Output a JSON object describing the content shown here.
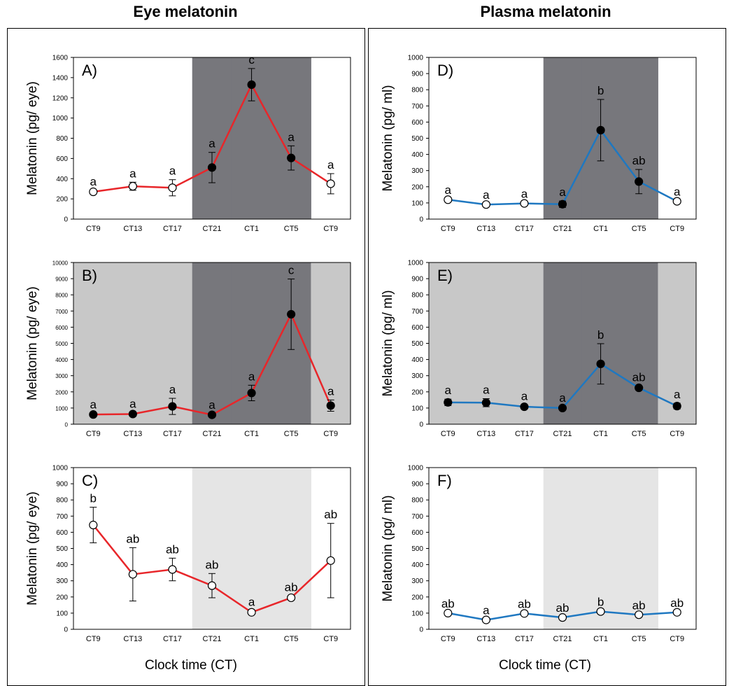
{
  "titles": {
    "left": "Eye melatonin",
    "right": "Plasma melatonin"
  },
  "xlabel": "Clock time (CT)",
  "colors": {
    "eye_line": "#e8262a",
    "plasma_line": "#1f78c1",
    "night_dark": "#77777c",
    "day_light": "#c8c8c8",
    "very_light": "#e5e5e5"
  },
  "chart_data": [
    {
      "type": "line",
      "panel": "A)",
      "ylabel": "Melatonin (pg/ eye)",
      "ylim": [
        0,
        1600
      ],
      "yticks": [
        0,
        200,
        400,
        600,
        800,
        1000,
        1200,
        1400,
        1600
      ],
      "categories": [
        "CT9",
        "CT13",
        "CT17",
        "CT21",
        "CT1",
        "CT5",
        "CT9"
      ],
      "values": [
        270,
        325,
        310,
        510,
        1330,
        605,
        350
      ],
      "errors": [
        15,
        40,
        80,
        150,
        160,
        120,
        100
      ],
      "filled": [
        false,
        false,
        false,
        true,
        true,
        true,
        false
      ],
      "letters": [
        "a",
        "a",
        "a",
        "a",
        "c",
        "a",
        "a"
      ],
      "background": [
        "white",
        "white",
        "white",
        "dark",
        "dark",
        "dark",
        "white"
      ],
      "line": "eye"
    },
    {
      "type": "line",
      "panel": "B)",
      "ylabel": "Melatonin (pg/ eye)",
      "ylim": [
        0,
        10000
      ],
      "yticks": [
        0,
        1000,
        2000,
        3000,
        4000,
        5000,
        6000,
        7000,
        8000,
        9000,
        10000
      ],
      "categories": [
        "CT9",
        "CT13",
        "CT17",
        "CT21",
        "CT1",
        "CT5",
        "CT9"
      ],
      "values": [
        600,
        630,
        1100,
        580,
        1930,
        6800,
        1150
      ],
      "errors": [
        80,
        80,
        500,
        80,
        480,
        2180,
        350
      ],
      "filled": [
        true,
        true,
        true,
        true,
        true,
        true,
        true
      ],
      "letters": [
        "a",
        "a",
        "a",
        "a",
        "a",
        "c",
        "a"
      ],
      "background": [
        "light",
        "light",
        "light",
        "dark",
        "dark",
        "dark",
        "light"
      ],
      "line": "eye"
    },
    {
      "type": "line",
      "panel": "C)",
      "ylabel": "Melatonin (pg/ eye)",
      "ylim": [
        0,
        1000
      ],
      "yticks": [
        0,
        100,
        200,
        300,
        400,
        500,
        600,
        700,
        800,
        900,
        1000
      ],
      "categories": [
        "CT9",
        "CT13",
        "CT17",
        "CT21",
        "CT1",
        "CT5",
        "CT9"
      ],
      "values": [
        645,
        340,
        370,
        270,
        105,
        195,
        425
      ],
      "errors": [
        110,
        165,
        70,
        75,
        10,
        10,
        230
      ],
      "filled": [
        false,
        false,
        false,
        false,
        false,
        false,
        false
      ],
      "letters": [
        "b",
        "ab",
        "ab",
        "ab",
        "a",
        "ab",
        "ab"
      ],
      "background": [
        "white",
        "white",
        "white",
        "vlight",
        "vlight",
        "vlight",
        "white"
      ],
      "line": "eye"
    },
    {
      "type": "line",
      "panel": "D)",
      "ylabel": "Melatonin (pg/ ml)",
      "ylim": [
        0,
        1000
      ],
      "yticks": [
        0,
        100,
        200,
        300,
        400,
        500,
        600,
        700,
        800,
        900,
        1000
      ],
      "categories": [
        "CT9",
        "CT13",
        "CT17",
        "CT21",
        "CT1",
        "CT5",
        "CT9"
      ],
      "values": [
        120,
        90,
        97,
        92,
        550,
        232,
        110
      ],
      "errors": [
        5,
        5,
        5,
        20,
        190,
        75,
        5
      ],
      "filled": [
        false,
        false,
        false,
        true,
        true,
        true,
        false
      ],
      "letters": [
        "a",
        "a",
        "a",
        "a",
        "b",
        "ab",
        "a"
      ],
      "background": [
        "white",
        "white",
        "white",
        "dark",
        "dark",
        "dark",
        "white"
      ],
      "line": "plasma"
    },
    {
      "type": "line",
      "panel": "E)",
      "ylabel": "Melatonin (pg/ ml)",
      "ylim": [
        0,
        1000
      ],
      "yticks": [
        0,
        100,
        200,
        300,
        400,
        500,
        600,
        700,
        800,
        900,
        1000
      ],
      "categories": [
        "CT9",
        "CT13",
        "CT17",
        "CT21",
        "CT1",
        "CT5",
        "CT9"
      ],
      "values": [
        135,
        133,
        108,
        100,
        373,
        225,
        112
      ],
      "errors": [
        20,
        25,
        10,
        8,
        125,
        10,
        18
      ],
      "filled": [
        true,
        true,
        true,
        true,
        true,
        true,
        true
      ],
      "letters": [
        "a",
        "a",
        "a",
        "a",
        "b",
        "ab",
        "a"
      ],
      "background": [
        "light",
        "light",
        "light",
        "dark",
        "dark",
        "dark",
        "light"
      ],
      "line": "plasma"
    },
    {
      "type": "line",
      "panel": "F)",
      "ylabel": "Melatonin (pg/ ml)",
      "ylim": [
        0,
        1000
      ],
      "yticks": [
        0,
        100,
        200,
        300,
        400,
        500,
        600,
        700,
        800,
        900,
        1000
      ],
      "categories": [
        "CT9",
        "CT13",
        "CT17",
        "CT21",
        "CT1",
        "CT5",
        "CT9"
      ],
      "values": [
        100,
        58,
        98,
        73,
        110,
        90,
        105
      ],
      "errors": [
        4,
        4,
        4,
        4,
        4,
        4,
        4
      ],
      "filled": [
        false,
        false,
        false,
        false,
        false,
        false,
        false
      ],
      "letters": [
        "ab",
        "a",
        "ab",
        "ab",
        "b",
        "ab",
        "ab"
      ],
      "background": [
        "white",
        "white",
        "white",
        "vlight",
        "vlight",
        "vlight",
        "white"
      ],
      "line": "plasma"
    }
  ]
}
